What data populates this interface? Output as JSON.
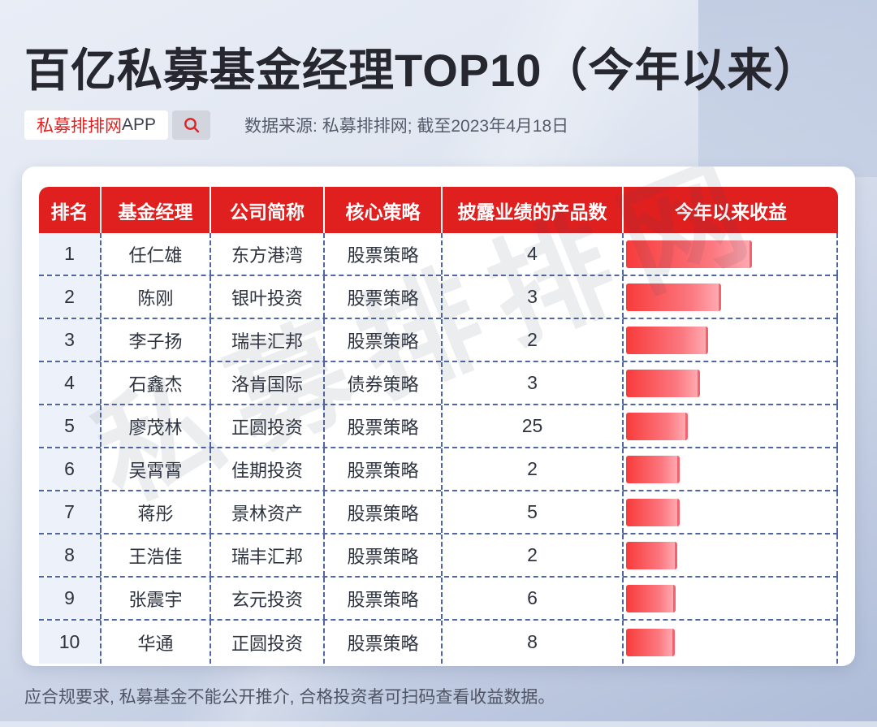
{
  "title": "百亿私募基金经理TOP10（今年以来）",
  "header_bar": {
    "app_badge": {
      "brand": "私募排排网",
      "suffix": "APP"
    },
    "search_icon": "magnifier-icon",
    "source_note": "数据来源: 私募排排网; 截至2023年4月18日"
  },
  "watermark": "私募排排网",
  "footer_note": "应合规要求, 私募基金不能公开推介, 合格投资者可扫码查看收益数据。",
  "colors": {
    "accent_red": "#e01f1f",
    "bar_gradient_start": "#f83b3b",
    "bar_gradient_end": "#ffa9b0",
    "dashed_line": "#4e66a4",
    "title_text": "#27272f",
    "rank_column_bg": "#edf1f9"
  },
  "chart_data": {
    "type": "table",
    "title": "百亿私募基金经理TOP10（今年以来）",
    "columns": [
      "排名",
      "基金经理",
      "公司简称",
      "核心策略",
      "披露业绩的产品数",
      "今年以来收益"
    ],
    "bar_column": "今年以来收益",
    "bar_note": "收益条无数值标注，宽度为相对收益（占列宽百分比估读）",
    "rows": [
      {
        "rank": "1",
        "manager": "任仁雄",
        "company": "东方港湾",
        "strategy": "股票策略",
        "products": "4",
        "bar_pct": 60
      },
      {
        "rank": "2",
        "manager": "陈刚",
        "company": "银叶投资",
        "strategy": "股票策略",
        "products": "3",
        "bar_pct": 45
      },
      {
        "rank": "3",
        "manager": "李子扬",
        "company": "瑞丰汇邦",
        "strategy": "股票策略",
        "products": "2",
        "bar_pct": 39
      },
      {
        "rank": "4",
        "manager": "石鑫杰",
        "company": "洛肯国际",
        "strategy": "债券策略",
        "products": "3",
        "bar_pct": 35
      },
      {
        "rank": "5",
        "manager": "廖茂林",
        "company": "正圆投资",
        "strategy": "股票策略",
        "products": "25",
        "bar_pct": 29.5
      },
      {
        "rank": "6",
        "manager": "吴霄霄",
        "company": "佳期投资",
        "strategy": "股票策略",
        "products": "2",
        "bar_pct": 25.5
      },
      {
        "rank": "7",
        "manager": "蒋彤",
        "company": "景林资产",
        "strategy": "股票策略",
        "products": "5",
        "bar_pct": 25.5
      },
      {
        "rank": "8",
        "manager": "王浩佳",
        "company": "瑞丰汇邦",
        "strategy": "股票策略",
        "products": "2",
        "bar_pct": 24.5
      },
      {
        "rank": "9",
        "manager": "张震宇",
        "company": "玄元投资",
        "strategy": "股票策略",
        "products": "6",
        "bar_pct": 23.5
      },
      {
        "rank": "10",
        "manager": "华通",
        "company": "正圆投资",
        "strategy": "股票策略",
        "products": "8",
        "bar_pct": 23
      }
    ]
  }
}
